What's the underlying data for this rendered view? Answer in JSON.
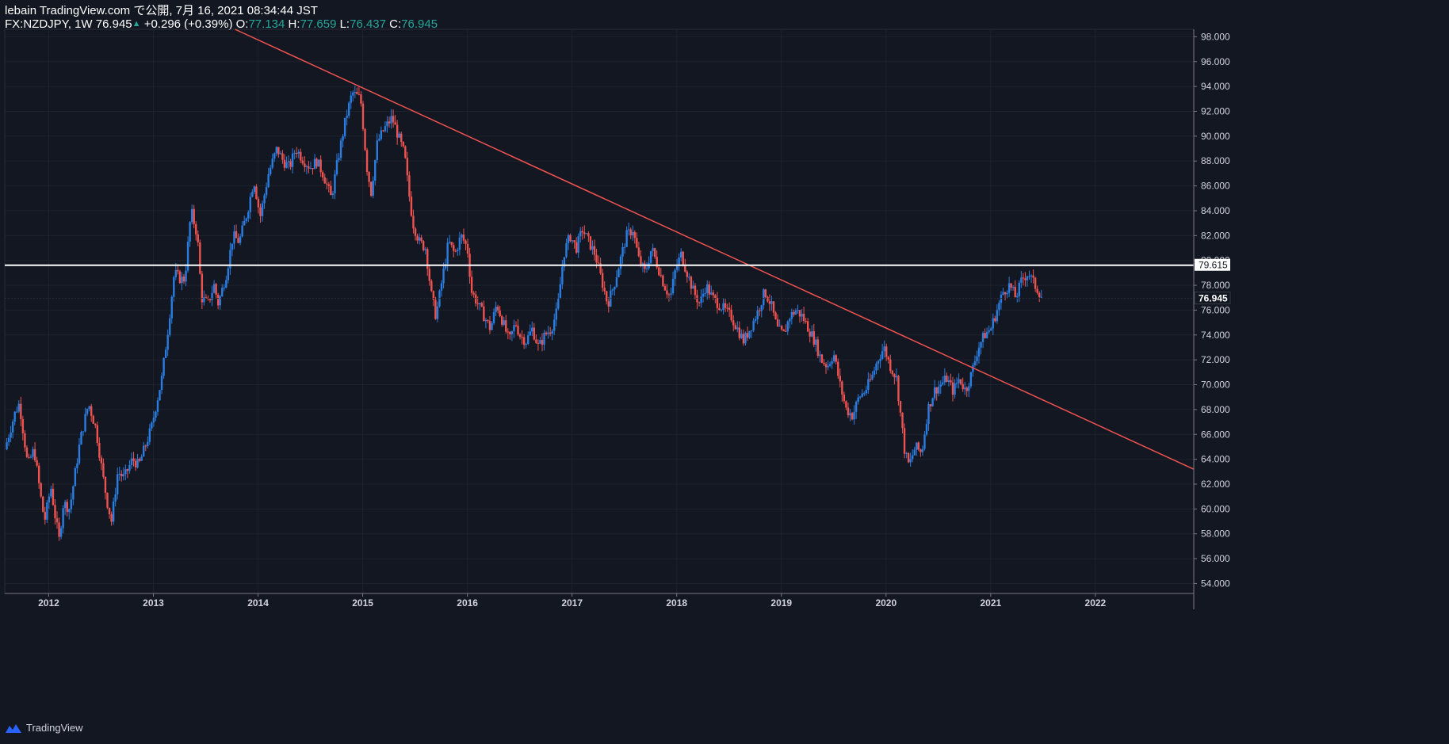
{
  "header": {
    "publisher": "lebain TradingView.com で公開, 7月 16, 2021 08:34:44 JST",
    "symbol": "FX:NZDJPY, 1W",
    "last": "76.945",
    "change": "+0.296 (+0.39%)",
    "o_label": "O:",
    "o_value": "77.134",
    "h_label": "H:",
    "h_value": "77.659",
    "l_label": "L:",
    "l_value": "76.437",
    "c_label": "C:",
    "c_value": "76.945"
  },
  "footer": {
    "brand": "TradingView"
  },
  "chart_data": {
    "type": "candlestick",
    "symbol": "FX:NZDJPY",
    "interval": "1W",
    "x_tick_labels": [
      "2012",
      "2013",
      "2014",
      "2015",
      "2016",
      "2017",
      "2018",
      "2019",
      "2020",
      "2021",
      "2022"
    ],
    "y_tick_labels": [
      "54.000",
      "56.000",
      "58.000",
      "60.000",
      "62.000",
      "64.000",
      "66.000",
      "68.000",
      "70.000",
      "72.000",
      "74.000",
      "76.000",
      "78.000",
      "80.000",
      "82.000",
      "84.000",
      "86.000",
      "88.000",
      "90.000",
      "92.000",
      "94.000",
      "96.000",
      "98.000"
    ],
    "ylim": [
      53.2,
      98.6
    ],
    "xlim": [
      2011.58,
      2022.94
    ],
    "horizontal_line": {
      "value": 79.615,
      "label": "79.615",
      "color": "#ffffff"
    },
    "last_price": {
      "value": 76.945,
      "label": "76.945"
    },
    "trendline": {
      "color": "#ef5350",
      "points": [
        [
          2013.78,
          98.6
        ],
        [
          2022.94,
          63.2
        ]
      ]
    },
    "colors": {
      "up": "#2a7de1",
      "down": "#ef5350",
      "background": "#131722",
      "grid": "#1e222d"
    },
    "close_path": [
      [
        2011.58,
        64.8
      ],
      [
        2011.68,
        67.8
      ],
      [
        2011.72,
        68.5
      ],
      [
        2011.8,
        63.5
      ],
      [
        2011.86,
        64.8
      ],
      [
        2011.92,
        61.2
      ],
      [
        2011.96,
        59.0
      ],
      [
        2012.02,
        61.8
      ],
      [
        2012.06,
        59.5
      ],
      [
        2012.1,
        57.5
      ],
      [
        2012.14,
        60.5
      ],
      [
        2012.2,
        60.0
      ],
      [
        2012.3,
        65.5
      ],
      [
        2012.38,
        68.5
      ],
      [
        2012.45,
        66.5
      ],
      [
        2012.52,
        62.5
      ],
      [
        2012.56,
        60.5
      ],
      [
        2012.6,
        59.0
      ],
      [
        2012.66,
        63.0
      ],
      [
        2012.72,
        62.5
      ],
      [
        2012.8,
        64.0
      ],
      [
        2012.86,
        63.5
      ],
      [
        2012.92,
        65.0
      ],
      [
        2012.98,
        66.5
      ],
      [
        2013.08,
        70.5
      ],
      [
        2013.14,
        74.5
      ],
      [
        2013.2,
        79.0
      ],
      [
        2013.26,
        78.5
      ],
      [
        2013.3,
        78.5
      ],
      [
        2013.36,
        84.0
      ],
      [
        2013.42,
        82.0
      ],
      [
        2013.46,
        77.0
      ],
      [
        2013.52,
        76.5
      ],
      [
        2013.58,
        78.0
      ],
      [
        2013.62,
        76.5
      ],
      [
        2013.7,
        79.0
      ],
      [
        2013.76,
        82.0
      ],
      [
        2013.82,
        81.5
      ],
      [
        2013.9,
        84.0
      ],
      [
        2013.96,
        86.5
      ],
      [
        2014.02,
        83.5
      ],
      [
        2014.1,
        87.0
      ],
      [
        2014.18,
        89.0
      ],
      [
        2014.24,
        88.0
      ],
      [
        2014.3,
        87.5
      ],
      [
        2014.36,
        89.0
      ],
      [
        2014.44,
        88.0
      ],
      [
        2014.5,
        87.5
      ],
      [
        2014.56,
        88.0
      ],
      [
        2014.62,
        87.0
      ],
      [
        2014.7,
        85.0
      ],
      [
        2014.76,
        88.0
      ],
      [
        2014.84,
        91.5
      ],
      [
        2014.9,
        93.5
      ],
      [
        2014.98,
        93.0
      ],
      [
        2015.04,
        87.5
      ],
      [
        2015.08,
        85.5
      ],
      [
        2015.14,
        89.5
      ],
      [
        2015.2,
        90.5
      ],
      [
        2015.28,
        91.5
      ],
      [
        2015.34,
        90.0
      ],
      [
        2015.4,
        88.5
      ],
      [
        2015.44,
        85.5
      ],
      [
        2015.48,
        83.0
      ],
      [
        2015.54,
        81.5
      ],
      [
        2015.6,
        81.0
      ],
      [
        2015.66,
        77.0
      ],
      [
        2015.7,
        75.5
      ],
      [
        2015.76,
        78.5
      ],
      [
        2015.82,
        81.5
      ],
      [
        2015.88,
        80.5
      ],
      [
        2015.94,
        82.0
      ],
      [
        2016.0,
        81.0
      ],
      [
        2016.04,
        77.5
      ],
      [
        2016.1,
        76.5
      ],
      [
        2016.16,
        75.5
      ],
      [
        2016.22,
        74.5
      ],
      [
        2016.28,
        76.5
      ],
      [
        2016.34,
        75.0
      ],
      [
        2016.4,
        73.5
      ],
      [
        2016.46,
        75.0
      ],
      [
        2016.5,
        74.0
      ],
      [
        2016.56,
        73.5
      ],
      [
        2016.62,
        74.5
      ],
      [
        2016.68,
        73.0
      ],
      [
        2016.74,
        74.0
      ],
      [
        2016.8,
        74.5
      ],
      [
        2016.86,
        76.0
      ],
      [
        2016.92,
        80.5
      ],
      [
        2016.98,
        82.0
      ],
      [
        2017.04,
        81.0
      ],
      [
        2017.1,
        82.5
      ],
      [
        2017.16,
        81.5
      ],
      [
        2017.22,
        80.5
      ],
      [
        2017.28,
        78.5
      ],
      [
        2017.34,
        76.5
      ],
      [
        2017.4,
        78.0
      ],
      [
        2017.46,
        80.0
      ],
      [
        2017.52,
        82.0
      ],
      [
        2017.58,
        82.5
      ],
      [
        2017.64,
        80.0
      ],
      [
        2017.7,
        79.0
      ],
      [
        2017.76,
        81.0
      ],
      [
        2017.82,
        79.5
      ],
      [
        2017.88,
        78.0
      ],
      [
        2017.94,
        77.0
      ],
      [
        2017.98,
        79.0
      ],
      [
        2018.04,
        80.5
      ],
      [
        2018.1,
        79.0
      ],
      [
        2018.16,
        77.5
      ],
      [
        2018.22,
        76.5
      ],
      [
        2018.28,
        78.0
      ],
      [
        2018.34,
        77.0
      ],
      [
        2018.4,
        76.5
      ],
      [
        2018.46,
        76.0
      ],
      [
        2018.52,
        75.5
      ],
      [
        2018.58,
        74.5
      ],
      [
        2018.64,
        73.5
      ],
      [
        2018.7,
        74.5
      ],
      [
        2018.78,
        76.0
      ],
      [
        2018.84,
        77.5
      ],
      [
        2018.9,
        76.5
      ],
      [
        2018.96,
        74.5
      ],
      [
        2019.02,
        74.0
      ],
      [
        2019.08,
        75.5
      ],
      [
        2019.14,
        76.0
      ],
      [
        2019.2,
        75.5
      ],
      [
        2019.26,
        74.5
      ],
      [
        2019.32,
        73.5
      ],
      [
        2019.38,
        72.0
      ],
      [
        2019.44,
        71.5
      ],
      [
        2019.5,
        72.5
      ],
      [
        2019.56,
        70.0
      ],
      [
        2019.62,
        68.0
      ],
      [
        2019.68,
        67.5
      ],
      [
        2019.74,
        69.0
      ],
      [
        2019.8,
        69.5
      ],
      [
        2019.86,
        70.5
      ],
      [
        2019.92,
        72.0
      ],
      [
        2019.98,
        73.0
      ],
      [
        2020.04,
        71.5
      ],
      [
        2020.1,
        70.5
      ],
      [
        2020.14,
        67.5
      ],
      [
        2020.18,
        64.5
      ],
      [
        2020.22,
        63.5
      ],
      [
        2020.28,
        65.0
      ],
      [
        2020.34,
        64.5
      ],
      [
        2020.4,
        68.0
      ],
      [
        2020.46,
        69.5
      ],
      [
        2020.52,
        70.0
      ],
      [
        2020.58,
        70.5
      ],
      [
        2020.64,
        69.5
      ],
      [
        2020.7,
        70.5
      ],
      [
        2020.76,
        69.5
      ],
      [
        2020.82,
        71.0
      ],
      [
        2020.88,
        73.0
      ],
      [
        2020.94,
        74.0
      ],
      [
        2021.0,
        74.5
      ],
      [
        2021.06,
        76.0
      ],
      [
        2021.12,
        77.5
      ],
      [
        2021.18,
        78.0
      ],
      [
        2021.24,
        77.0
      ],
      [
        2021.3,
        78.5
      ],
      [
        2021.36,
        79.0
      ],
      [
        2021.42,
        78.0
      ],
      [
        2021.46,
        77.5
      ],
      [
        2021.5,
        76.945
      ]
    ]
  }
}
